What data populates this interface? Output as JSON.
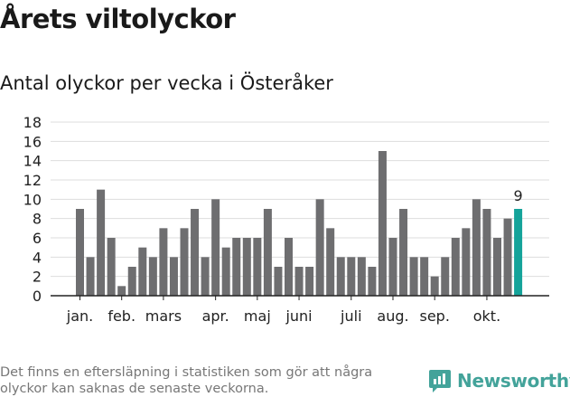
{
  "title": "Årets viltolyckor",
  "subtitle": "Antal olyckor per vecka i Österåker",
  "footnote": "Det finns en eftersläpning i statistiken som gör att några olyckor kan saknas de senaste veckorna.",
  "logo": {
    "text": "Newsworthy",
    "color": "#43a39a"
  },
  "chart_data": {
    "type": "bar",
    "title": "Antal olyckor per vecka i Österåker",
    "xlabel": "",
    "ylabel": "",
    "ylim": [
      0,
      18
    ],
    "y_ticks": [
      0,
      2,
      4,
      6,
      8,
      10,
      12,
      14,
      16,
      18
    ],
    "grid": true,
    "bar_color": "#6e6e70",
    "highlight_color": "#14a39a",
    "highlight_index": 42,
    "highlight_label": "9",
    "weeks": [
      1,
      2,
      3,
      4,
      5,
      6,
      7,
      8,
      9,
      10,
      11,
      12,
      13,
      14,
      15,
      16,
      17,
      18,
      19,
      20,
      21,
      22,
      23,
      24,
      25,
      26,
      27,
      28,
      29,
      30,
      31,
      32,
      33,
      34,
      35,
      36,
      37,
      38,
      39,
      40,
      41,
      42,
      43
    ],
    "values": [
      9,
      4,
      11,
      6,
      1,
      3,
      5,
      4,
      7,
      4,
      7,
      9,
      4,
      10,
      5,
      6,
      6,
      6,
      9,
      3,
      6,
      3,
      3,
      10,
      7,
      4,
      4,
      4,
      3,
      15,
      6,
      9,
      4,
      4,
      2,
      4,
      6,
      7,
      10,
      9,
      6,
      8,
      9
    ],
    "month_labels": [
      {
        "label": "jan.",
        "at_index": 0
      },
      {
        "label": "feb.",
        "at_index": 4
      },
      {
        "label": "mars",
        "at_index": 8
      },
      {
        "label": "apr.",
        "at_index": 13
      },
      {
        "label": "maj",
        "at_index": 17
      },
      {
        "label": "juni",
        "at_index": 21
      },
      {
        "label": "juli",
        "at_index": 26
      },
      {
        "label": "aug.",
        "at_index": 30
      },
      {
        "label": "sep.",
        "at_index": 34
      },
      {
        "label": "okt.",
        "at_index": 39
      }
    ]
  }
}
